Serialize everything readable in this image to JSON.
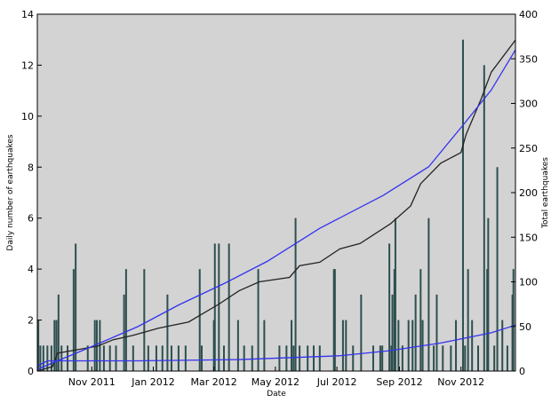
{
  "chart_data": {
    "type": "bar",
    "x_label": "Date",
    "y_label": "Daily number of earthquakes",
    "y2_label": "Total earthquakes",
    "background": "#d3d3d3",
    "xlim": [
      0,
      474
    ],
    "xticks": [
      {
        "value": 54,
        "label": "Nov 2011"
      },
      {
        "value": 115,
        "label": "Jan 2012"
      },
      {
        "value": 175,
        "label": "Mar 2012"
      },
      {
        "value": 236,
        "label": "May 2012"
      },
      {
        "value": 297,
        "label": "Jul 2012"
      },
      {
        "value": 359,
        "label": "Sep 2012"
      },
      {
        "value": 420,
        "label": "Nov 2012"
      }
    ],
    "ylim": [
      0,
      14
    ],
    "yticks": [
      0,
      2,
      4,
      6,
      8,
      10,
      12,
      14
    ],
    "y2lim": [
      0,
      400
    ],
    "y2ticks": [
      0,
      50,
      100,
      150,
      200,
      250,
      300,
      350,
      400
    ],
    "series": [
      {
        "type": "bar",
        "color": "#2f4f4f",
        "x": [
          1,
          3,
          6,
          10,
          14,
          17,
          19,
          21,
          24,
          30,
          36,
          38,
          50,
          57,
          59,
          62,
          66,
          72,
          78,
          86,
          88,
          95,
          106,
          110,
          118,
          124,
          129,
          133,
          140,
          147,
          161,
          163,
          175,
          176,
          180,
          185,
          190,
          199,
          205,
          213,
          219,
          225,
          240,
          247,
          252,
          254,
          256,
          260,
          268,
          274,
          280,
          294,
          295,
          303,
          306,
          313,
          321,
          333,
          340,
          342,
          349,
          351,
          352,
          354,
          355,
          358,
          362,
          368,
          372,
          375,
          380,
          382,
          388,
          393,
          396,
          402,
          410,
          415,
          422,
          424,
          427,
          431,
          437,
          443,
          446,
          447,
          453,
          456,
          461,
          466,
          471,
          472
        ],
        "values": [
          2,
          1,
          1,
          1,
          1,
          2,
          2,
          3,
          1,
          1,
          4,
          5,
          1,
          2,
          2,
          2,
          1,
          1,
          1,
          3,
          4,
          1,
          4,
          1,
          1,
          1,
          3,
          1,
          1,
          1,
          4,
          1,
          2,
          5,
          5,
          1,
          5,
          2,
          1,
          1,
          4,
          2,
          1,
          1,
          2,
          1,
          6,
          1,
          1,
          1,
          1,
          4,
          4,
          2,
          2,
          1,
          3,
          1,
          1,
          1,
          5,
          1,
          3,
          4,
          6,
          2,
          1,
          2,
          2,
          3,
          4,
          2,
          6,
          1,
          3,
          1,
          1,
          2,
          13,
          1,
          4,
          2,
          1,
          12,
          4,
          6,
          1,
          8,
          2,
          1,
          3,
          4
        ]
      },
      {
        "type": "line",
        "color": "#222222",
        "axis": "y2",
        "x": [
          0,
          15,
          20,
          30,
          60,
          75,
          95,
          120,
          150,
          180,
          200,
          220,
          250,
          260,
          280,
          300,
          320,
          350,
          370,
          380,
          400,
          420,
          425,
          440,
          450,
          474
        ],
        "values": [
          0,
          5,
          20,
          22,
          28,
          35,
          40,
          48,
          55,
          75,
          90,
          100,
          105,
          118,
          122,
          137,
          143,
          165,
          185,
          210,
          233,
          245,
          265,
          305,
          335,
          371
        ]
      },
      {
        "type": "line",
        "color": "#3333ee",
        "axis": "y2",
        "x": [
          0,
          51,
          100,
          140,
          185,
          228,
          280,
          343,
          388,
          423,
          450,
          474
        ],
        "values": [
          2,
          26,
          50,
          74,
          98,
          123,
          160,
          197,
          229,
          277,
          315,
          360
        ]
      },
      {
        "type": "line",
        "color": "#3333ee",
        "x": [
          0,
          10,
          100,
          200,
          300,
          350,
          400,
          450,
          474
        ],
        "values": [
          0.2,
          0.4,
          0.4,
          0.45,
          0.6,
          0.8,
          1.1,
          1.5,
          1.8
        ]
      }
    ]
  }
}
